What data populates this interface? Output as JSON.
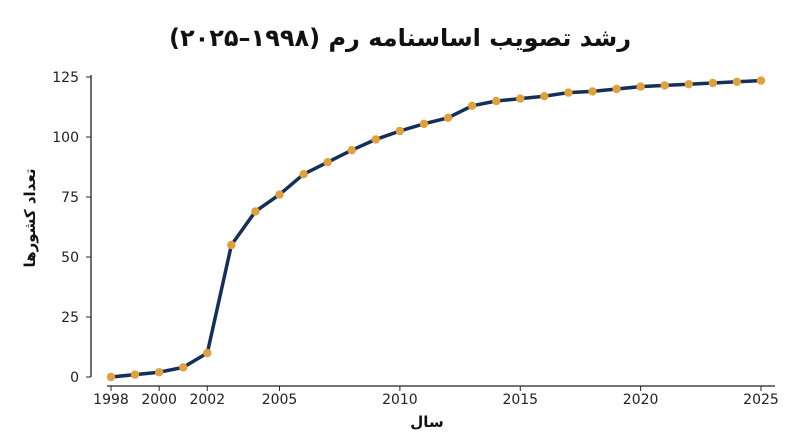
{
  "chart_data": {
    "type": "line",
    "title": "رشد تصویب اساسنامه رم (۱۹۹۸–۲۰۲۵)",
    "xlabel": "سال",
    "ylabel": "تعداد کشورها",
    "xlim": [
      1998,
      2025
    ],
    "ylim": [
      0,
      125
    ],
    "x_ticks": [
      1998,
      2000,
      2002,
      2005,
      2010,
      2015,
      2020,
      2025
    ],
    "y_ticks": [
      0,
      25,
      50,
      75,
      100,
      125
    ],
    "grid": false,
    "line_color": "#14305a",
    "marker_color": "#e0a03a",
    "x": [
      1998,
      1999,
      2000,
      2001,
      2002,
      2003,
      2004,
      2005,
      2006,
      2007,
      2008,
      2009,
      2010,
      2011,
      2012,
      2013,
      2014,
      2015,
      2016,
      2017,
      2018,
      2019,
      2020,
      2021,
      2022,
      2023,
      2024,
      2025
    ],
    "values": [
      0,
      1,
      2,
      4,
      10,
      55,
      69,
      76,
      84.5,
      89.5,
      94.5,
      99,
      102.5,
      105.5,
      108,
      113,
      115,
      116,
      117,
      118.5,
      119,
      120,
      121,
      121.5,
      122,
      122.5,
      123,
      123.5
    ]
  }
}
